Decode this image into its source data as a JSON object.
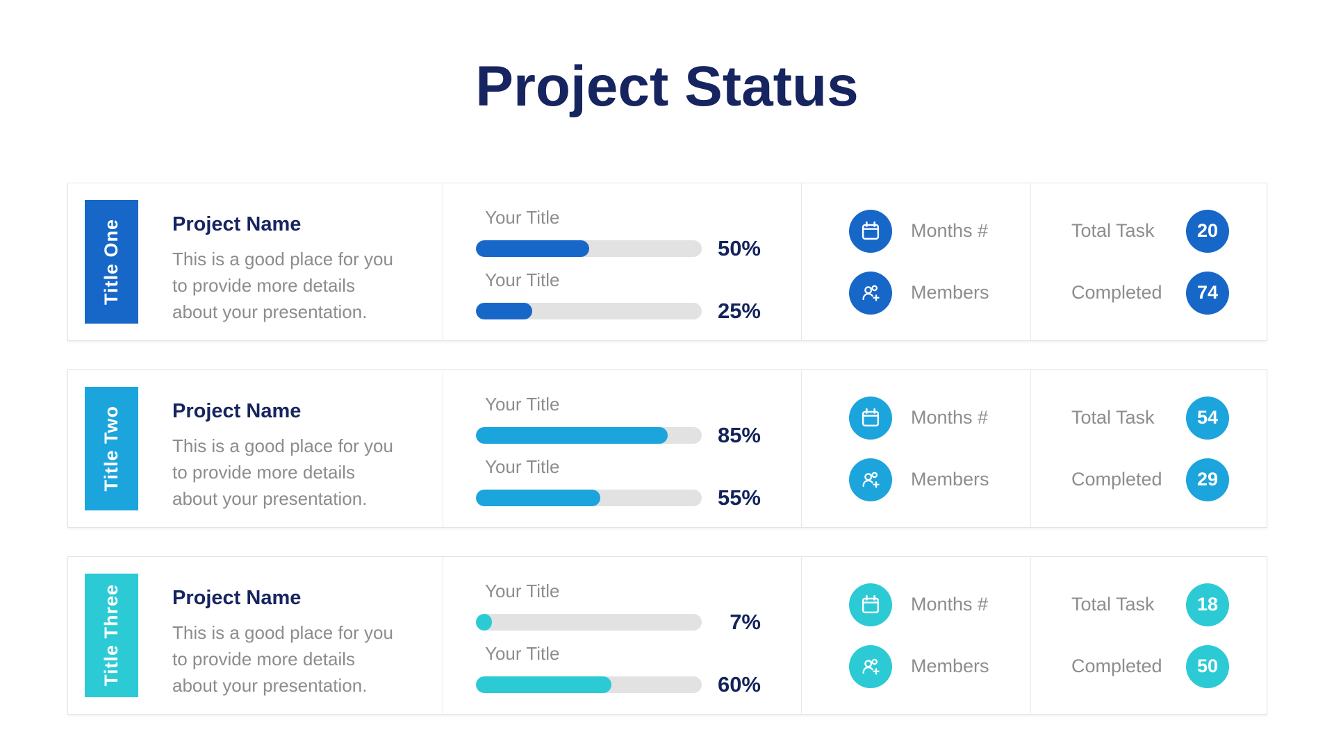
{
  "page": {
    "title": "Project Status"
  },
  "colors": {
    "navy": "#16245f",
    "label_gray": "#8d8d8d",
    "track_gray": "#e2e2e2"
  },
  "rows": [
    {
      "tab": "Title One",
      "accent": "#1767c8",
      "project_name": "Project Name",
      "description_lines": [
        "This is a good place for you",
        "to provide more details",
        "about your presentation."
      ],
      "meters": [
        {
          "label": "Your Title",
          "percent": 50,
          "percent_label": "50%"
        },
        {
          "label": "Your Title",
          "percent": 25,
          "percent_label": "25%"
        }
      ],
      "stats": [
        {
          "icon": "calendar-icon",
          "label": "Months #"
        },
        {
          "icon": "add-user-icon",
          "label": "Members"
        }
      ],
      "totals": [
        {
          "label": "Total Task",
          "value": "20"
        },
        {
          "label": "Completed",
          "value": "74"
        }
      ]
    },
    {
      "tab": "Title Two",
      "accent": "#1ca4dc",
      "project_name": "Project Name",
      "description_lines": [
        "This is a good place for you",
        "to provide more details",
        "about your presentation."
      ],
      "meters": [
        {
          "label": "Your Title",
          "percent": 85,
          "percent_label": "85%"
        },
        {
          "label": "Your Title",
          "percent": 55,
          "percent_label": "55%"
        }
      ],
      "stats": [
        {
          "icon": "calendar-icon",
          "label": "Months #"
        },
        {
          "icon": "add-user-icon",
          "label": "Members"
        }
      ],
      "totals": [
        {
          "label": "Total Task",
          "value": "54"
        },
        {
          "label": "Completed",
          "value": "29"
        }
      ]
    },
    {
      "tab": "Title Three",
      "accent": "#2ccad4",
      "project_name": "Project Name",
      "description_lines": [
        "This is a good place for you",
        "to provide more details",
        "about your presentation."
      ],
      "meters": [
        {
          "label": "Your Title",
          "percent": 7,
          "percent_label": "7%"
        },
        {
          "label": "Your Title",
          "percent": 60,
          "percent_label": "60%"
        }
      ],
      "stats": [
        {
          "icon": "calendar-icon",
          "label": "Months #"
        },
        {
          "icon": "add-user-icon",
          "label": "Members"
        }
      ],
      "totals": [
        {
          "label": "Total Task",
          "value": "18"
        },
        {
          "label": "Completed",
          "value": "50"
        }
      ]
    }
  ]
}
